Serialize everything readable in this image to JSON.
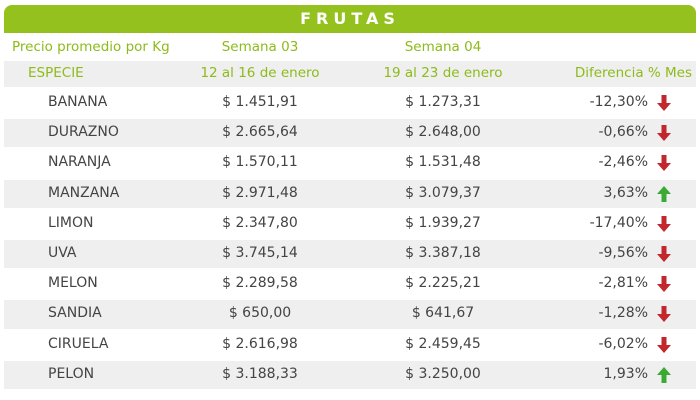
{
  "title": "FRUTAS",
  "header_row_1": [
    "Precio promedio por Kg",
    "Semana 03",
    "Semana 04"
  ],
  "header_row_2": [
    "ESPECIE",
    "12 al 16 de enero",
    "19 al 23 de enero",
    "Diferencia % Mes"
  ],
  "rows": [
    [
      "BANANA",
      "$ 1.451,91",
      "$ 1.273,31",
      "-12,30%"
    ],
    [
      "DURAZNO",
      "$ 2.665,64",
      "$ 2.648,00",
      "-0,66%"
    ],
    [
      "NARANJA",
      "$ 1.570,11",
      "$ 1.531,48",
      "-2,46%"
    ],
    [
      "MANZANA",
      "$ 2.971,48",
      "$ 3.079,37",
      "3,63%"
    ],
    [
      "LIMON",
      "$ 2.347,80",
      "$ 1.939,27",
      "-17,40%"
    ],
    [
      "UVA",
      "$ 3.745,14",
      "$ 3.387,18",
      "-9,56%"
    ],
    [
      "MELON",
      "$ 2.289,58",
      "$ 2.225,21",
      "-2,81%"
    ],
    [
      "SANDIA",
      "$ 650,00",
      "$ 641,67",
      "-1,28%"
    ],
    [
      "CIRUELA",
      "$ 2.616,98",
      "$ 2.459,45",
      "-6,02%"
    ],
    [
      "PELON",
      "$ 3.188,33",
      "$ 3.250,00",
      "1,93%"
    ]
  ]
}
